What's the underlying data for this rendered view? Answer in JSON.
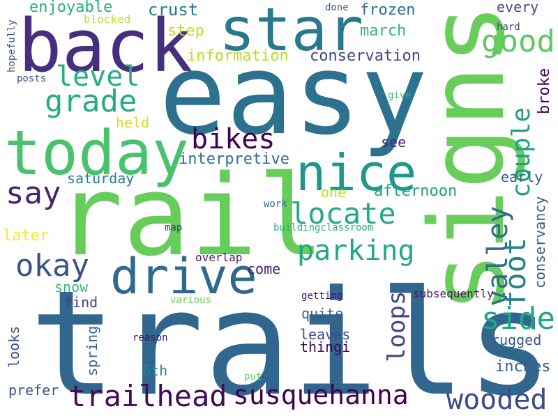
{
  "words": [
    {
      "text": "trails",
      "color": "#31668e"
    },
    {
      "text": "rail",
      "color": "#67cc5c"
    },
    {
      "text": "easy",
      "color": "#2c718e"
    },
    {
      "text": "signs",
      "color": "#69cd5b"
    },
    {
      "text": "back",
      "color": "#46307e"
    },
    {
      "text": "today",
      "color": "#4ac16d"
    },
    {
      "text": "star",
      "color": "#2a788e"
    },
    {
      "text": "nice",
      "color": "#1f988b"
    },
    {
      "text": "drive",
      "color": "#30698e"
    },
    {
      "text": "trailhead",
      "color": "#450b57"
    },
    {
      "text": "susquehanna",
      "color": "#440154"
    },
    {
      "text": "good",
      "color": "#5ec962"
    },
    {
      "text": "locate",
      "color": "#25ab82"
    },
    {
      "text": "grade",
      "color": "#26ad81"
    },
    {
      "text": "level",
      "color": "#26ad81"
    },
    {
      "text": "parking",
      "color": "#22a884"
    },
    {
      "text": "bikes",
      "color": "#440154"
    },
    {
      "text": "say",
      "color": "#482173"
    },
    {
      "text": "okay",
      "color": "#3b528b"
    },
    {
      "text": "couple",
      "color": "#1f9e89"
    },
    {
      "text": "valley",
      "color": "#2f6c8e"
    },
    {
      "text": "foot",
      "color": "#26828e"
    },
    {
      "text": "side",
      "color": "#22a785"
    },
    {
      "text": "wooded",
      "color": "#3e4989"
    },
    {
      "text": "loops",
      "color": "#3f4788"
    },
    {
      "text": "enjoyable",
      "color": "#29af7f"
    },
    {
      "text": "crust",
      "color": "#2a788e"
    },
    {
      "text": "frozen",
      "color": "#2d708e"
    },
    {
      "text": "every",
      "color": "#3f4788"
    },
    {
      "text": "done",
      "color": "#31688e"
    },
    {
      "text": "blocked",
      "color": "#bddf26"
    },
    {
      "text": "step",
      "color": "#c2df23"
    },
    {
      "text": "march",
      "color": "#35b779"
    },
    {
      "text": "hard",
      "color": "#404588"
    },
    {
      "text": "hopefully",
      "color": "#3b528b"
    },
    {
      "text": "information",
      "color": "#b5de2b"
    },
    {
      "text": "conservation",
      "color": "#414487"
    },
    {
      "text": "posts",
      "color": "#3e4a89"
    },
    {
      "text": "give",
      "color": "#35b779"
    },
    {
      "text": "broke",
      "color": "#440154"
    },
    {
      "text": "held",
      "color": "#d0e11c"
    },
    {
      "text": "see",
      "color": "#482878"
    },
    {
      "text": "interpretive",
      "color": "#2e6f8e"
    },
    {
      "text": "saturday",
      "color": "#287d8e"
    },
    {
      "text": "early",
      "color": "#355f8d"
    },
    {
      "text": "one",
      "color": "#b8de29"
    },
    {
      "text": "afternoon",
      "color": "#20a386"
    },
    {
      "text": "conservancy",
      "color": "#39568c"
    },
    {
      "text": "work",
      "color": "#31688e"
    },
    {
      "text": "later",
      "color": "#fde725"
    },
    {
      "text": "map",
      "color": "#453781"
    },
    {
      "text": "buildingclassroom",
      "color": "#2ab07f"
    },
    {
      "text": "overlap",
      "color": "#481a6c"
    },
    {
      "text": "come",
      "color": "#481d6f"
    },
    {
      "text": "snow",
      "color": "#35b779"
    },
    {
      "text": "find",
      "color": "#414487"
    },
    {
      "text": "various",
      "color": "#6ccd5a"
    },
    {
      "text": "quite",
      "color": "#33628d"
    },
    {
      "text": "getting",
      "color": "#481467"
    },
    {
      "text": "subsequently",
      "color": "#481a6c"
    },
    {
      "text": "leaves",
      "color": "#3e4a89"
    },
    {
      "text": "thingi",
      "color": "#450559"
    },
    {
      "text": "looks",
      "color": "#3b528b"
    },
    {
      "text": "spring",
      "color": "#365d8d"
    },
    {
      "text": "reason",
      "color": "#481467"
    },
    {
      "text": "rugged",
      "color": "#38588c"
    },
    {
      "text": "6th",
      "color": "#24868e"
    },
    {
      "text": "inches",
      "color": "#355e8d"
    },
    {
      "text": "prefer",
      "color": "#3c4f8a"
    },
    {
      "text": "put",
      "color": "#6ece58"
    }
  ]
}
